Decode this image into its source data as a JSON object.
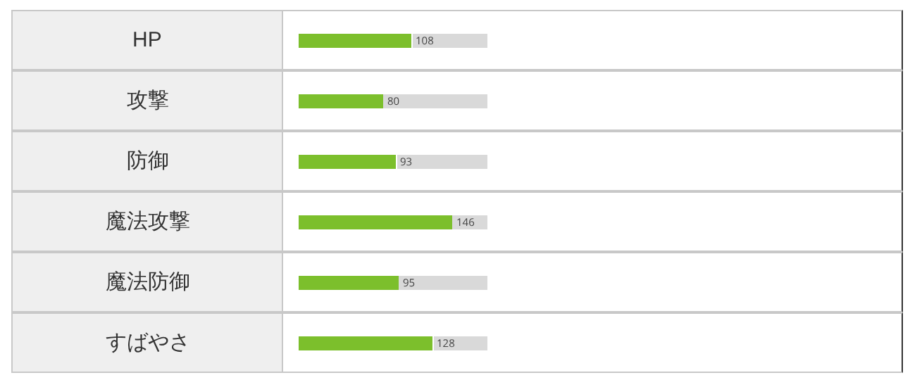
{
  "chart_data": {
    "type": "bar",
    "orientation": "horizontal",
    "categories": [
      "HP",
      "攻撃",
      "防御",
      "魔法攻撃",
      "魔法防御",
      "すばやさ"
    ],
    "values": [
      108,
      80,
      93,
      146,
      95,
      128
    ],
    "color": "#7cbf2c",
    "xlim": [
      0,
      180
    ],
    "data_labels": true,
    "tick_labels": false,
    "grid": false
  }
}
